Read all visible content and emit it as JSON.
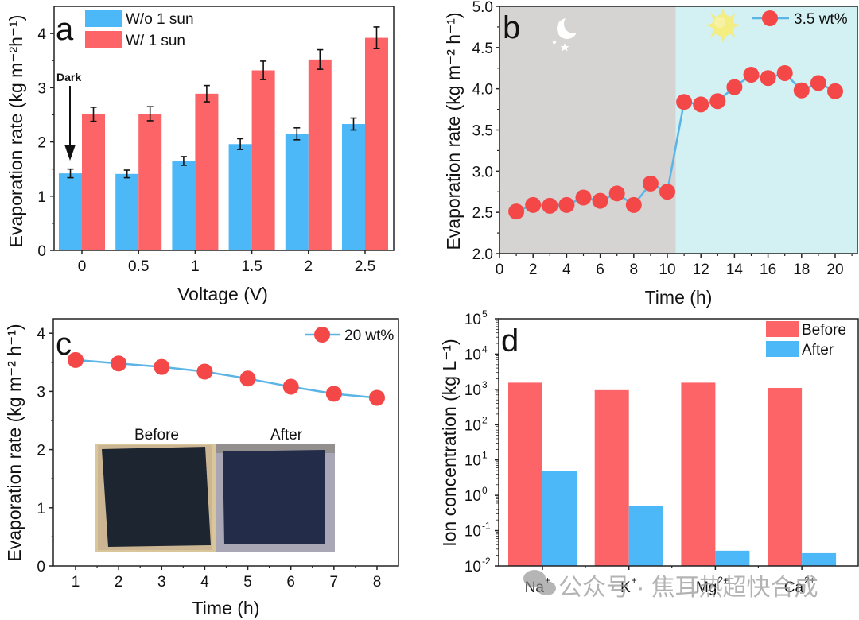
{
  "figure": {
    "watermark_text": "公众号 · 焦耳热超快合成"
  },
  "colors": {
    "blue": "#4db8f7",
    "red": "#fc6467",
    "marker": "#f44848",
    "line": "#5ab4e6",
    "night_bg": "#d6d3d3",
    "day_bg": "#d3f0f2",
    "sun": "#f4ee82",
    "axis": "#222222"
  },
  "chart_data": [
    {
      "id": "a",
      "type": "bar",
      "panel_label": "a",
      "title": "",
      "xlabel": "Voltage (V)",
      "ylabel": "Evaporation rate (kg m⁻²h⁻¹)",
      "categories": [
        "0",
        "0.5",
        "1",
        "1.5",
        "2",
        "2.5"
      ],
      "ylim": [
        0,
        4.5
      ],
      "yticks": [
        "0",
        "1",
        "2",
        "3",
        "4"
      ],
      "ytick_values": [
        0,
        1,
        2,
        3,
        4
      ],
      "grid": false,
      "legend_position": "top-left",
      "series": [
        {
          "name": "W/o 1 sun",
          "color": "#4db8f7",
          "values": [
            1.42,
            1.41,
            1.65,
            1.96,
            2.15,
            2.33
          ],
          "errors": [
            0.08,
            0.07,
            0.08,
            0.1,
            0.11,
            0.11
          ]
        },
        {
          "name": "W/ 1 sun",
          "color": "#fc6467",
          "values": [
            2.51,
            2.52,
            2.89,
            3.32,
            3.52,
            3.92
          ],
          "errors": [
            0.13,
            0.13,
            0.15,
            0.17,
            0.18,
            0.2
          ]
        }
      ],
      "annotation": {
        "text": "Dark",
        "target_category": "0",
        "arrow": "down"
      }
    },
    {
      "id": "b",
      "type": "line",
      "panel_label": "b",
      "title": "",
      "xlabel": "Time (h)",
      "ylabel": "Evaporation rate (kg m⁻² h⁻¹)",
      "xlim": [
        0,
        21
      ],
      "ylim": [
        2.0,
        5.0
      ],
      "xticks": [
        "0",
        "2",
        "4",
        "6",
        "8",
        "10",
        "12",
        "14",
        "16",
        "18",
        "20"
      ],
      "xtick_values": [
        0,
        2,
        4,
        6,
        8,
        10,
        12,
        14,
        16,
        18,
        20
      ],
      "yticks": [
        "2.0",
        "2.5",
        "3.0",
        "3.5",
        "4.0",
        "4.5",
        "5.0"
      ],
      "ytick_values": [
        2.0,
        2.5,
        3.0,
        3.5,
        4.0,
        4.5,
        5.0
      ],
      "grid": false,
      "legend_position": "top-right",
      "background_regions": [
        {
          "label": "night",
          "x_from": 0,
          "x_to": 10.5,
          "icon": "moon-icon"
        },
        {
          "label": "day",
          "x_from": 10.5,
          "x_to": 21,
          "icon": "sun-icon"
        }
      ],
      "series": [
        {
          "name": "3.5 wt%",
          "x": [
            1,
            2,
            3,
            4,
            5,
            6,
            7,
            8,
            9,
            10,
            11,
            12,
            13,
            14,
            15,
            16,
            17,
            18,
            19,
            20
          ],
          "values": [
            2.51,
            2.59,
            2.58,
            2.59,
            2.68,
            2.64,
            2.73,
            2.59,
            2.85,
            2.75,
            3.84,
            3.81,
            3.85,
            4.02,
            4.17,
            4.13,
            4.19,
            3.98,
            4.07,
            3.97
          ]
        }
      ]
    },
    {
      "id": "c",
      "type": "line",
      "panel_label": "c",
      "title": "",
      "xlabel": "Time (h)",
      "ylabel": "Evaporation rate (kg m⁻² h⁻¹)",
      "xlim": [
        0.5,
        8.5
      ],
      "ylim": [
        0,
        4.2
      ],
      "xticks": [
        "1",
        "2",
        "3",
        "4",
        "5",
        "6",
        "7",
        "8"
      ],
      "xtick_values": [
        1,
        2,
        3,
        4,
        5,
        6,
        7,
        8
      ],
      "yticks": [
        "0",
        "1",
        "2",
        "3",
        "4"
      ],
      "ytick_values": [
        0,
        1,
        2,
        3,
        4
      ],
      "grid": false,
      "legend_position": "top-right",
      "series": [
        {
          "name": "20 wt%",
          "x": [
            1,
            2,
            3,
            4,
            5,
            6,
            7,
            8
          ],
          "values": [
            3.54,
            3.48,
            3.42,
            3.34,
            3.22,
            3.08,
            2.96,
            2.89
          ]
        }
      ],
      "inset": {
        "left_caption": "Before",
        "right_caption": "After"
      }
    },
    {
      "id": "d",
      "type": "bar",
      "panel_label": "d",
      "title": "",
      "xlabel": "",
      "ylabel": "Ion concentration (kg L⁻¹)",
      "yscale": "log",
      "ylim": [
        0.01,
        100000
      ],
      "yticks": [
        "10",
        "10",
        "10",
        "10",
        "10",
        "10",
        "10",
        "10"
      ],
      "ytick_exponents": [
        "-2",
        "-1",
        "0",
        "1",
        "2",
        "3",
        "4",
        "5"
      ],
      "ytick_values": [
        0.01,
        0.1,
        1,
        10,
        100,
        1000,
        10000,
        100000
      ],
      "categories": [
        "Na",
        "K",
        "Mg",
        "Ca"
      ],
      "category_superscripts": [
        "+",
        "+",
        "2+",
        "2+"
      ],
      "grid": false,
      "legend_position": "top-right",
      "series": [
        {
          "name": "Before",
          "color": "#fc6467",
          "values": [
            1550,
            950,
            1550,
            1100
          ]
        },
        {
          "name": "After",
          "color": "#4db8f7",
          "values": [
            5.0,
            0.5,
            0.027,
            0.023
          ]
        }
      ]
    }
  ]
}
